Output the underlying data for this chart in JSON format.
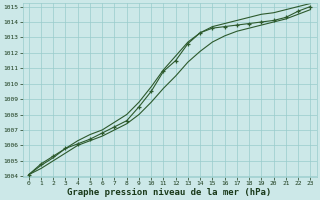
{
  "x": [
    0,
    1,
    2,
    3,
    4,
    5,
    6,
    7,
    8,
    9,
    10,
    11,
    12,
    13,
    14,
    15,
    16,
    17,
    18,
    19,
    20,
    21,
    22,
    23
  ],
  "line_marked": [
    1004.1,
    1004.8,
    1005.3,
    1005.8,
    1006.1,
    1006.4,
    1006.8,
    1007.2,
    1007.6,
    1008.5,
    1009.5,
    1010.8,
    1011.5,
    1012.6,
    1013.3,
    1013.6,
    1013.7,
    1013.8,
    1013.9,
    1014.0,
    1014.1,
    1014.3,
    1014.7,
    1015.0
  ],
  "line_low": [
    1004.1,
    1004.5,
    1005.0,
    1005.5,
    1006.0,
    1006.3,
    1006.6,
    1007.0,
    1007.4,
    1008.0,
    1008.8,
    1009.7,
    1010.5,
    1011.4,
    1012.1,
    1012.7,
    1013.1,
    1013.4,
    1013.6,
    1013.8,
    1014.0,
    1014.2,
    1014.5,
    1014.8
  ],
  "line_high": [
    1004.1,
    1004.7,
    1005.2,
    1005.8,
    1006.3,
    1006.7,
    1007.0,
    1007.5,
    1008.0,
    1008.8,
    1009.8,
    1010.9,
    1011.8,
    1012.7,
    1013.3,
    1013.7,
    1013.9,
    1014.1,
    1014.3,
    1014.5,
    1014.6,
    1014.8,
    1015.0,
    1015.2
  ],
  "ylim": [
    1004,
    1015
  ],
  "xlim": [
    -0.5,
    23.5
  ],
  "yticks": [
    1004,
    1005,
    1006,
    1007,
    1008,
    1009,
    1010,
    1011,
    1012,
    1013,
    1014,
    1015
  ],
  "xticks": [
    0,
    1,
    2,
    3,
    4,
    5,
    6,
    7,
    8,
    9,
    10,
    11,
    12,
    13,
    14,
    15,
    16,
    17,
    18,
    19,
    20,
    21,
    22,
    23
  ],
  "line_color": "#2d5a2d",
  "bg_color": "#cce8e8",
  "grid_color": "#99cccc",
  "xlabel": "Graphe pression niveau de la mer (hPa)",
  "xlabel_color": "#1a3a1a",
  "tick_color": "#1a3a1a",
  "marker": "+",
  "marker_size": 3.5,
  "linewidth": 0.8,
  "font_family": "monospace",
  "tick_fontsize": 4.5,
  "xlabel_fontsize": 6.5
}
